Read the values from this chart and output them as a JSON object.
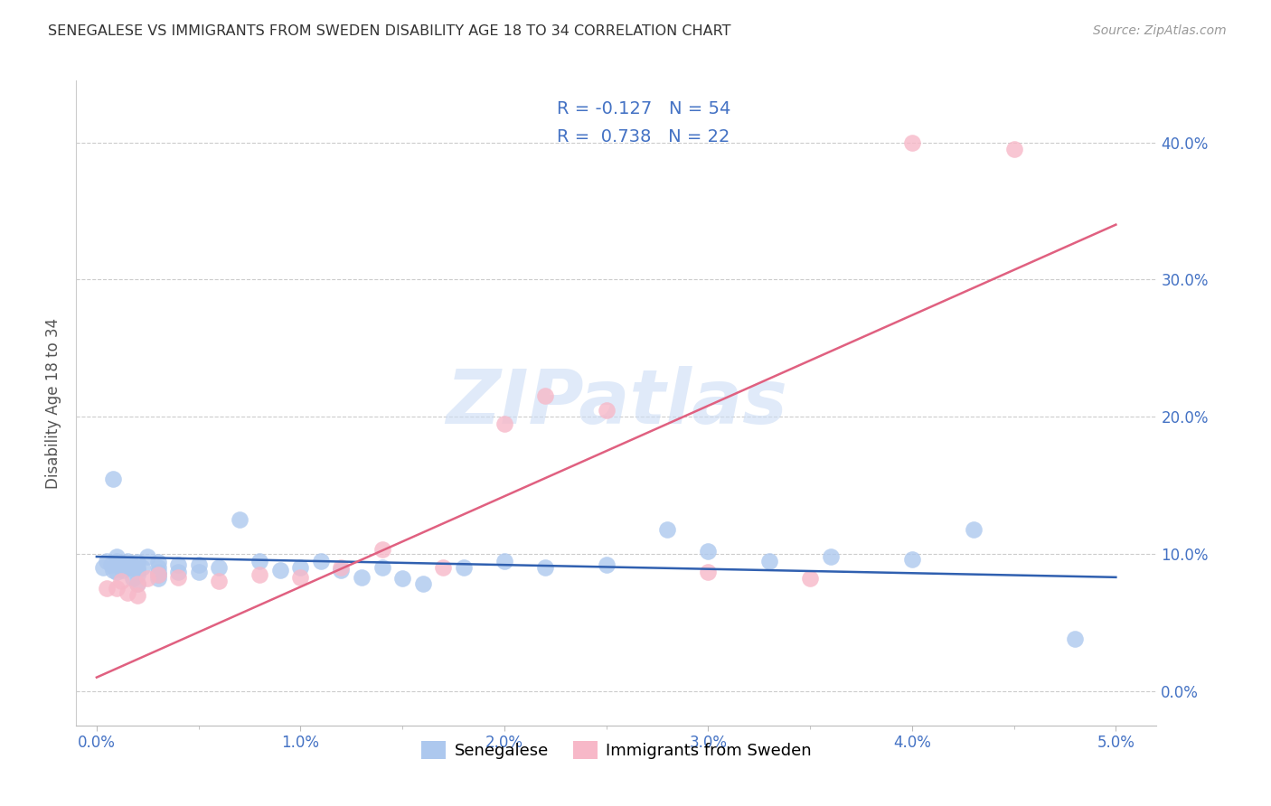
{
  "title": "SENEGALESE VS IMMIGRANTS FROM SWEDEN DISABILITY AGE 18 TO 34 CORRELATION CHART",
  "source": "Source: ZipAtlas.com",
  "ylabel": "Disability Age 18 to 34",
  "x_min": 0.0,
  "x_max": 0.05,
  "y_min": -0.02,
  "y_max": 0.44,
  "series1_label": "Senegalese",
  "series1_color": "#adc8ee",
  "series1_R": "-0.127",
  "series1_N": "54",
  "series2_label": "Immigrants from Sweden",
  "series2_color": "#f7b8c8",
  "series2_R": "0.738",
  "series2_N": "22",
  "line1_color": "#3060b0",
  "line2_color": "#e06080",
  "text_color": "#4472c4",
  "watermark": "ZIPatlas",
  "title_color": "#333333",
  "senegalese_x": [
    0.0003,
    0.0005,
    0.0007,
    0.0008,
    0.001,
    0.001,
    0.001,
    0.001,
    0.0012,
    0.0013,
    0.0015,
    0.0015,
    0.0017,
    0.002,
    0.002,
    0.002,
    0.002,
    0.0022,
    0.0025,
    0.003,
    0.003,
    0.003,
    0.003,
    0.003,
    0.004,
    0.004,
    0.005,
    0.005,
    0.006,
    0.007,
    0.008,
    0.009,
    0.01,
    0.011,
    0.012,
    0.013,
    0.014,
    0.015,
    0.016,
    0.018,
    0.02,
    0.022,
    0.025,
    0.028,
    0.03,
    0.033,
    0.036,
    0.04,
    0.043,
    0.048,
    0.0008,
    0.0012,
    0.0018,
    0.002
  ],
  "senegalese_y": [
    0.09,
    0.095,
    0.092,
    0.088,
    0.098,
    0.093,
    0.087,
    0.095,
    0.092,
    0.088,
    0.095,
    0.09,
    0.093,
    0.09,
    0.088,
    0.085,
    0.094,
    0.09,
    0.098,
    0.094,
    0.09,
    0.087,
    0.082,
    0.085,
    0.092,
    0.087,
    0.092,
    0.087,
    0.09,
    0.125,
    0.095,
    0.088,
    0.09,
    0.095,
    0.088,
    0.083,
    0.09,
    0.082,
    0.078,
    0.09,
    0.095,
    0.09,
    0.092,
    0.118,
    0.102,
    0.095,
    0.098,
    0.096,
    0.118,
    0.038,
    0.155,
    0.09,
    0.082,
    0.078
  ],
  "sweden_x": [
    0.0005,
    0.001,
    0.0012,
    0.0015,
    0.002,
    0.002,
    0.0025,
    0.003,
    0.004,
    0.006,
    0.008,
    0.01,
    0.012,
    0.014,
    0.017,
    0.02,
    0.022,
    0.025,
    0.03,
    0.035,
    0.04,
    0.045
  ],
  "sweden_y": [
    0.075,
    0.075,
    0.08,
    0.072,
    0.078,
    0.07,
    0.082,
    0.085,
    0.083,
    0.08,
    0.085,
    0.083,
    0.09,
    0.103,
    0.09,
    0.195,
    0.215,
    0.205,
    0.087,
    0.082,
    0.4,
    0.395
  ],
  "line1_x0": 0.0,
  "line1_x1": 0.05,
  "line1_y0": 0.098,
  "line1_y1": 0.083,
  "line2_x0": 0.0,
  "line2_x1": 0.05,
  "line2_y0": 0.01,
  "line2_y1": 0.34
}
